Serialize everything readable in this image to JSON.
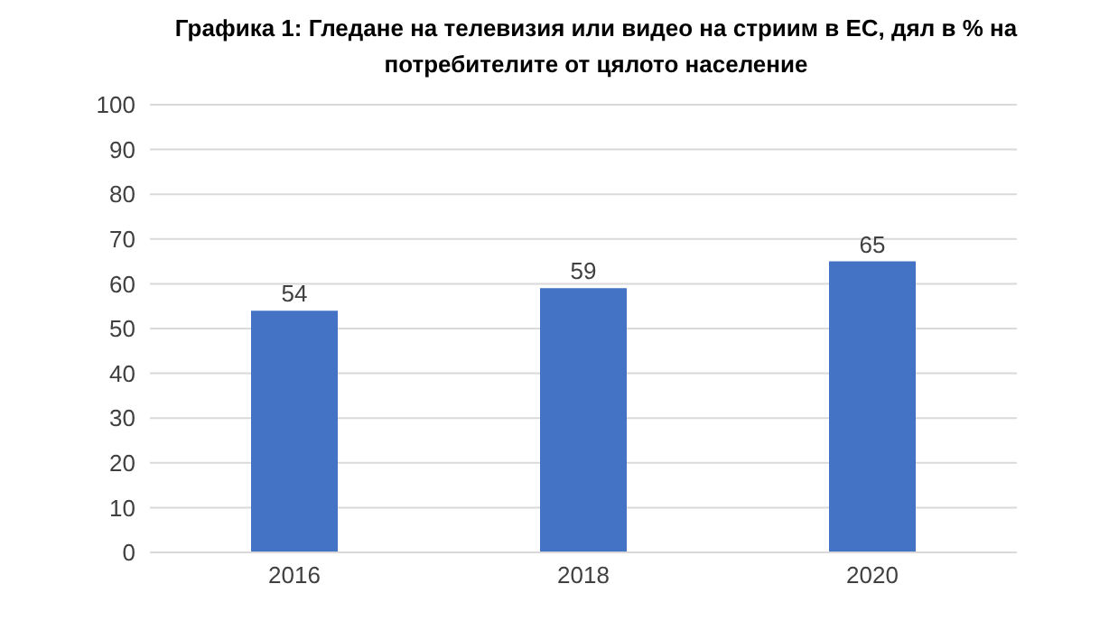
{
  "chart_data": {
    "type": "bar",
    "title": "Графика 1: Гледане на телевизия или видео на стриим в ЕС, дял в % на потребителите от цялото население",
    "categories": [
      "2016",
      "2018",
      "2020"
    ],
    "values": [
      54,
      59,
      65
    ],
    "color": "#4472c4",
    "ylim": [
      0,
      100
    ],
    "yticks": [
      0,
      10,
      20,
      30,
      40,
      50,
      60,
      70,
      80,
      90,
      100
    ],
    "grid": "y",
    "data_labels": true
  }
}
